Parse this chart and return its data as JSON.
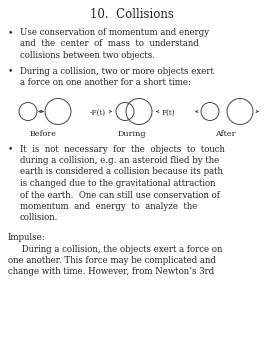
{
  "title": "10.  Collisions",
  "bg_color": "#ffffff",
  "text_color": "#222222",
  "title_fontsize": 8.5,
  "body_fontsize": 6.2,
  "label_fontsize": 5.8,
  "force_fontsize": 5.2,
  "font_family": "serif",
  "bullet1_lines": [
    "Use conservation of momentum and energy",
    "and  the  center  of  mass  to  understand",
    "collisions between two objects."
  ],
  "bullet2_lines": [
    "During a collision, two or more objects exert",
    "a force on one another for a short time:"
  ],
  "bullet3_lines": [
    "It  is  not  necessary  for  the  objects  to  touch",
    "during a collision, e.g. an asteroid flied by the",
    "earth is considered a collision because its path",
    "is changed due to the gravitational attraction",
    "of the earth.  One can still use conservation of",
    "momentum  and  energy  to  analyze  the",
    "collision."
  ],
  "impulse_header": "Impulse:",
  "impulse_lines": [
    "     During a collision, the objects exert a force on",
    "one another. This force may be complicated and",
    "change with time. However, from Newton’s 3rd"
  ],
  "before_label": "Before",
  "during_label": "During",
  "after_label": "After",
  "force_neg": "-F(t)",
  "force_pos": "F(t)"
}
